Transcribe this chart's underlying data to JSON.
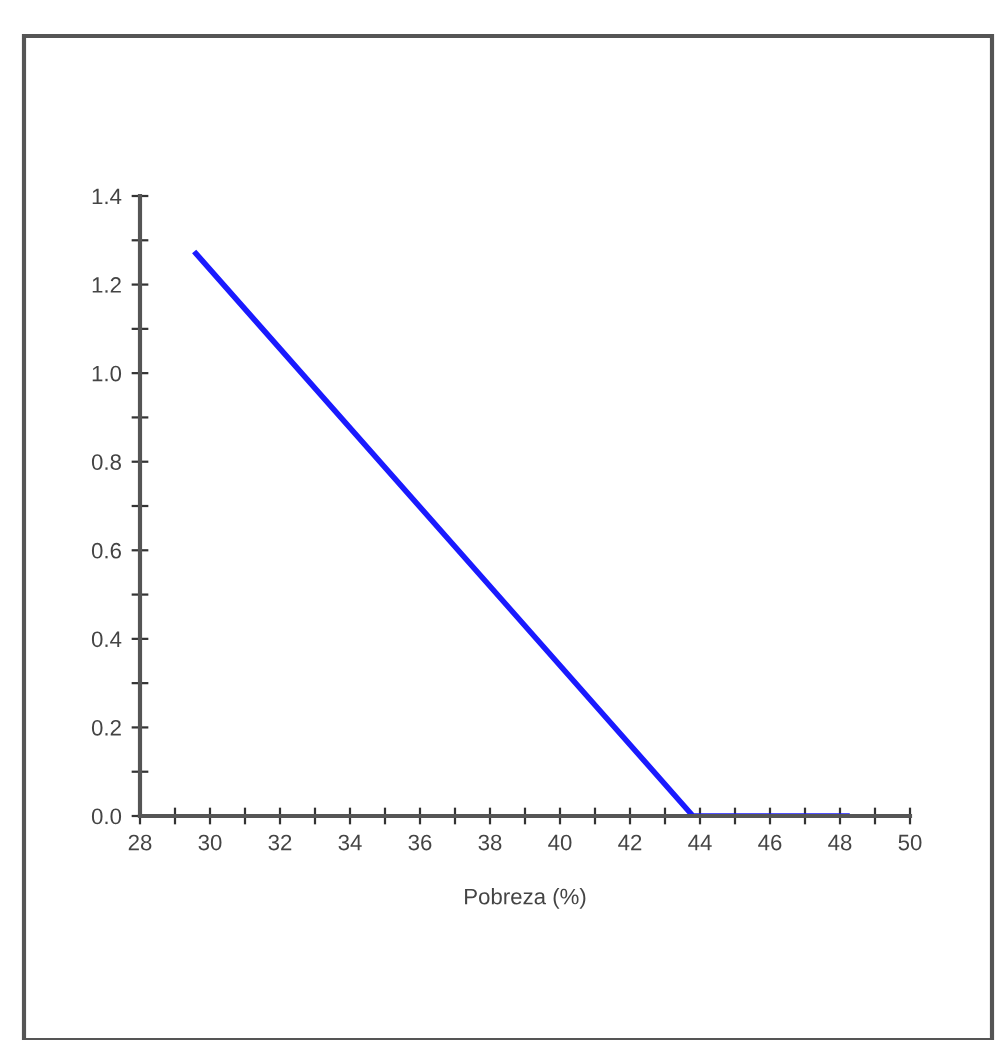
{
  "chart_data": {
    "type": "line",
    "xlabel": "Pobreza (%)",
    "series": [
      {
        "color": "#1a1aff",
        "x": [
          29.6,
          43.8,
          48.2
        ],
        "values": [
          1.27,
          0.0,
          0.0
        ]
      }
    ],
    "xlim": [
      28,
      50
    ],
    "ylim": [
      0,
      1.4
    ],
    "xticks": [
      28,
      {
        "value": 29,
        "label": null
      },
      30,
      {
        "value": 31,
        "label": null
      },
      32,
      {
        "value": 33,
        "label": null
      },
      34,
      {
        "value": 35,
        "label": null
      },
      36,
      {
        "value": 37,
        "label": null
      },
      38,
      {
        "value": 39,
        "label": null
      },
      40,
      {
        "value": 41,
        "label": null
      },
      42,
      {
        "value": 43,
        "label": null
      },
      44,
      {
        "value": 45,
        "label": null
      },
      46,
      {
        "value": 47,
        "label": null
      },
      48,
      {
        "value": 49,
        "label": null
      },
      50
    ],
    "yticks": [
      {
        "value": 0,
        "label": "0.0"
      },
      {
        "value": 0.1,
        "label": null
      },
      {
        "value": 0.2,
        "label": "0.2"
      },
      {
        "value": 0.3,
        "label": null
      },
      {
        "value": 0.4,
        "label": "0.4"
      },
      {
        "value": 0.5,
        "label": null
      },
      {
        "value": 0.6,
        "label": "0.6"
      },
      {
        "value": 0.7,
        "label": null
      },
      {
        "value": 0.8,
        "label": "0.8"
      },
      {
        "value": 0.9,
        "label": null
      },
      {
        "value": 1.0,
        "label": "1.0"
      },
      {
        "value": 1.1,
        "label": null
      },
      {
        "value": 1.2,
        "label": "1.2"
      },
      {
        "value": 1.3,
        "label": null
      },
      {
        "value": 1.4,
        "label": "1.4"
      }
    ],
    "grid": false,
    "marker": "none",
    "line_style": "solid"
  }
}
